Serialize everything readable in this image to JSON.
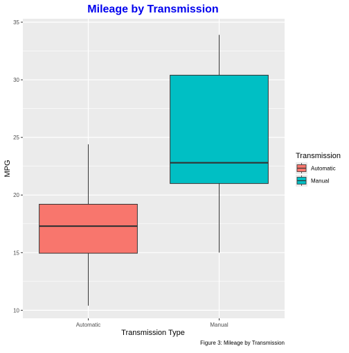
{
  "chart_data": {
    "type": "box",
    "title": "Mileage by Transmission",
    "xlabel": "Transmission Type",
    "ylabel": "MPG",
    "caption": "Figure 3: Mileage by Transmission",
    "ylim": [
      9.3,
      35.3
    ],
    "y_ticks": [
      10,
      15,
      20,
      25,
      30,
      35
    ],
    "y_minor_ticks": [
      12.5,
      17.5,
      22.5,
      27.5,
      32.5
    ],
    "categories": [
      "Automatic",
      "Manual"
    ],
    "boxes": [
      {
        "category": "Automatic",
        "min": 10.4,
        "q1": 14.95,
        "median": 17.3,
        "q3": 19.2,
        "max": 24.4,
        "color": "#F8766D"
      },
      {
        "category": "Manual",
        "min": 15.0,
        "q1": 21.0,
        "median": 22.8,
        "q3": 30.4,
        "max": 33.9,
        "color": "#00BFC4"
      }
    ],
    "legend": {
      "title": "Transmission",
      "position": "right",
      "items": [
        {
          "label": "Automatic",
          "color": "#F8766D"
        },
        {
          "label": "Manual",
          "color": "#00BFC4"
        }
      ]
    },
    "colors": {
      "title": "#0000EE",
      "panel": "#EBEBEB",
      "grid": "#FFFFFF",
      "box_outline": "#333333",
      "tick_text": "#4D4D4D"
    },
    "grid": true
  }
}
